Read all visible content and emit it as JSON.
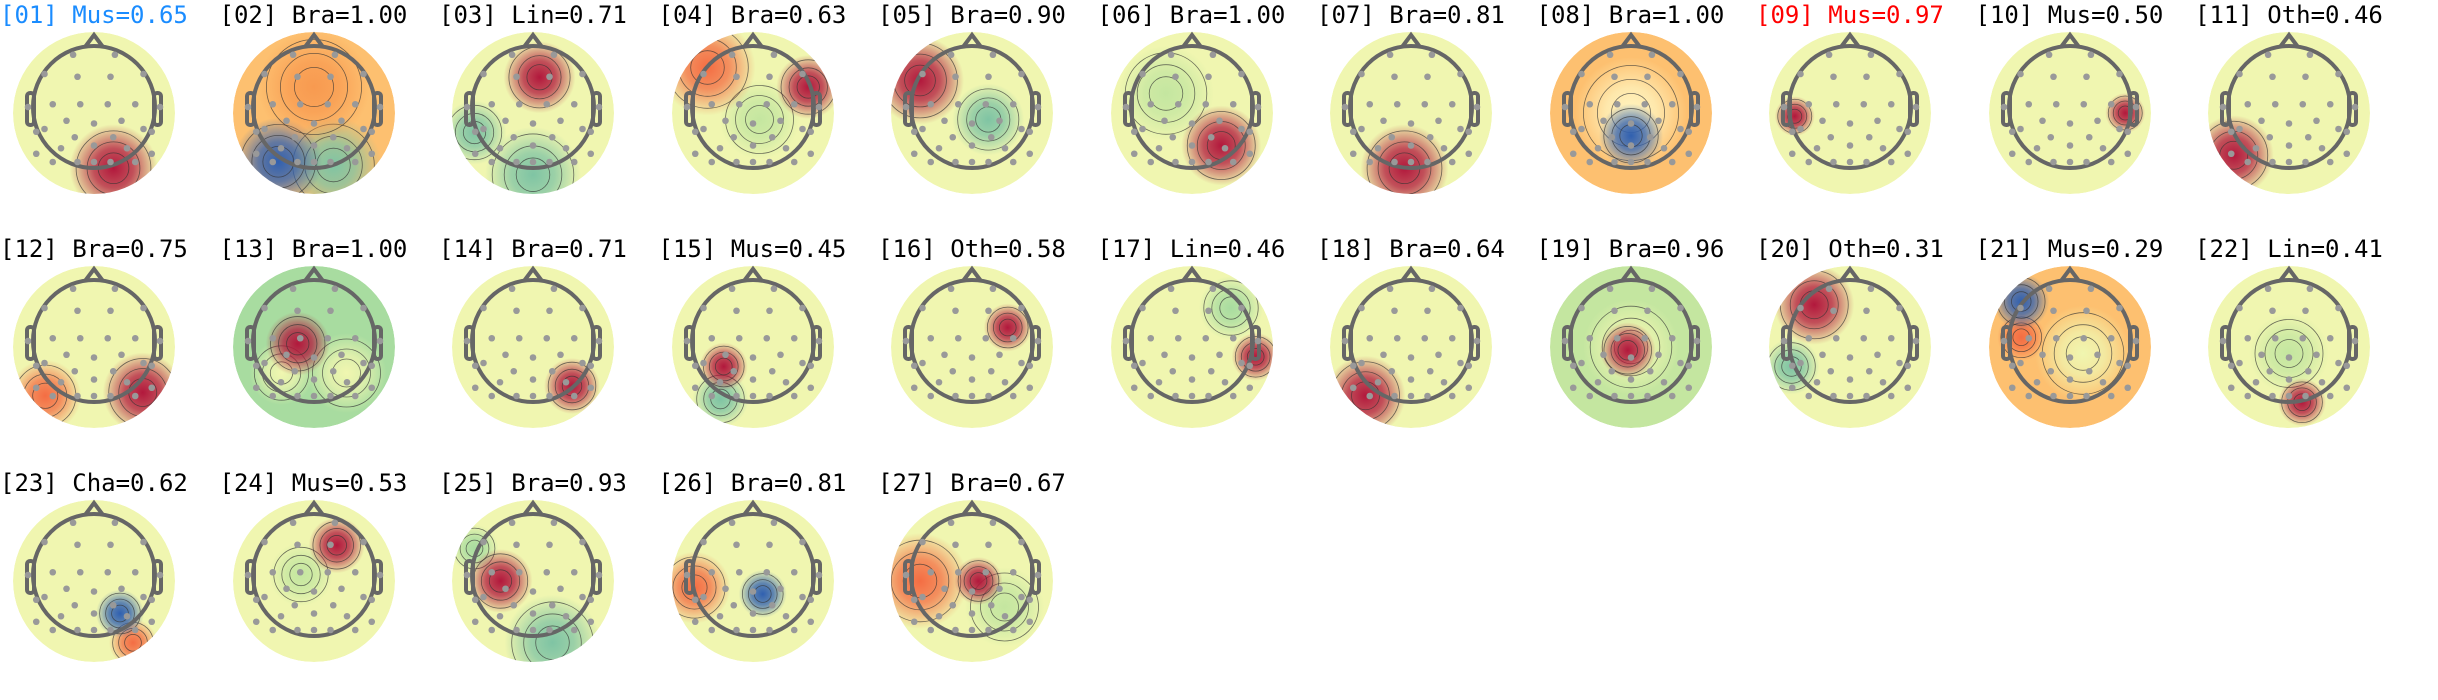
{
  "colors": {
    "highlight_selected": "#1a8cff",
    "highlight_excluded": "#ff0000",
    "default": "#000000"
  },
  "colormap": "Spectral_r",
  "components": [
    {
      "label": "[01] Mus=0.65",
      "state": "selected"
    },
    {
      "label": "[02] Bra=1.00"
    },
    {
      "label": "[03] Lin=0.71"
    },
    {
      "label": "[04] Bra=0.63"
    },
    {
      "label": "[05] Bra=0.90"
    },
    {
      "label": "[06] Bra=1.00"
    },
    {
      "label": "[07] Bra=0.81"
    },
    {
      "label": "[08] Bra=1.00"
    },
    {
      "label": "[09] Mus=0.97",
      "state": "excluded"
    },
    {
      "label": "[10] Mus=0.50"
    },
    {
      "label": "[11] Oth=0.46"
    },
    {
      "label": "[12] Bra=0.75"
    },
    {
      "label": "[13] Bra=1.00"
    },
    {
      "label": "[14] Bra=0.71"
    },
    {
      "label": "[15] Mus=0.45"
    },
    {
      "label": "[16] Oth=0.58"
    },
    {
      "label": "[17] Lin=0.46"
    },
    {
      "label": "[18] Bra=0.64"
    },
    {
      "label": "[19] Bra=0.96"
    },
    {
      "label": "[20] Oth=0.31"
    },
    {
      "label": "[21] Mus=0.29"
    },
    {
      "label": "[22] Lin=0.41"
    },
    {
      "label": "[23] Cha=0.62"
    },
    {
      "label": "[24] Mus=0.53"
    },
    {
      "label": "[25] Bra=0.93"
    },
    {
      "label": "[26] Bra=0.81"
    },
    {
      "label": "[27] Bra=0.67"
    }
  ]
}
